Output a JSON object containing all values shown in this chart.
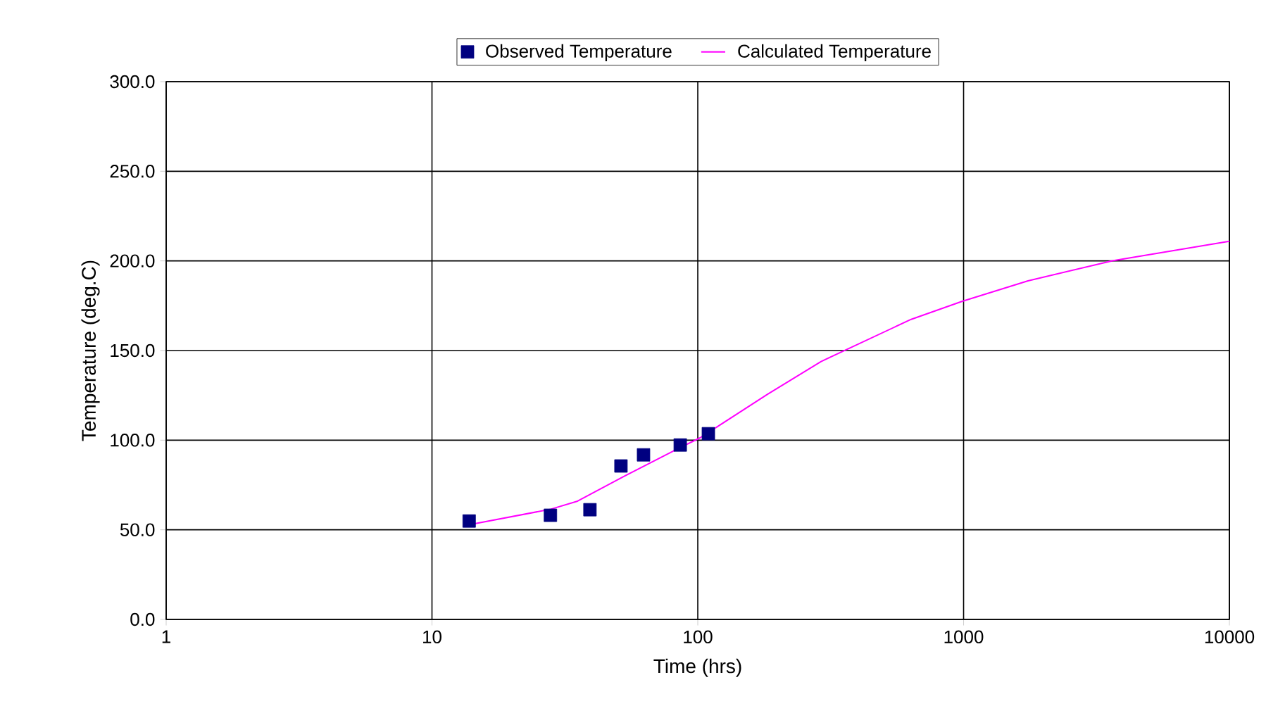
{
  "chart_data": {
    "type": "scatter",
    "xlabel": "Time (hrs)",
    "ylabel": "Temperature  (deg.C)",
    "log": "x",
    "grid": true,
    "legend": "top",
    "xlim": [
      1,
      10000
    ],
    "xticks": [
      1,
      10,
      100,
      1000,
      10000
    ],
    "ylim": [
      0,
      300
    ],
    "yticks": [
      {
        "value": 0,
        "label": "0.0"
      },
      {
        "value": 50,
        "label": "50.0"
      },
      {
        "value": 100,
        "label": "100.0"
      },
      {
        "value": 150,
        "label": "150.0"
      },
      {
        "value": 200,
        "label": "200.0"
      },
      {
        "value": 250,
        "label": "250.0"
      },
      {
        "value": 300,
        "label": "300.0"
      }
    ],
    "series": [
      {
        "name": "Observed Temperature",
        "marker": "square",
        "color": "#000080",
        "x": [
          13.8,
          27.9,
          39.3,
          51.4,
          62.5,
          85.9,
          109.6
        ],
        "values": [
          54.9,
          58.1,
          61.2,
          85.6,
          91.8,
          97.3,
          103.6
        ]
      },
      {
        "name": "Calculated Temperature",
        "type": "line",
        "marker": "none",
        "color": "#ff00ff",
        "x": [
          13.8,
          28,
          35.3,
          52.7,
          84.8,
          102,
          183,
          291,
          635,
          985,
          1747,
          3631,
          10000
        ],
        "values": [
          52.8,
          61.5,
          66,
          79.8,
          95.5,
          101.3,
          125.6,
          143.9,
          167.4,
          177.4,
          188.9,
          200.1,
          211
        ]
      }
    ]
  }
}
